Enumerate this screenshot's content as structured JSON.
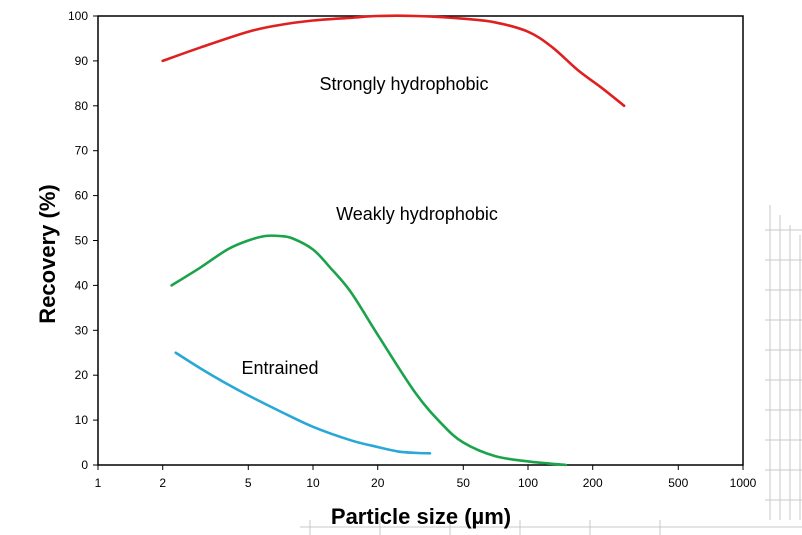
{
  "chart_data": {
    "type": "line",
    "title": "",
    "xlabel": "Particle size (µm)",
    "ylabel": "Recovery (%)",
    "xscale": "log",
    "xlim": [
      1,
      1000
    ],
    "ylim": [
      0,
      100
    ],
    "grid": false,
    "x_ticks": [
      1,
      2,
      5,
      10,
      20,
      50,
      100,
      200,
      500,
      1000
    ],
    "x_tick_labels": [
      "1",
      "2",
      "5",
      "10",
      "20",
      "50",
      "100",
      "200",
      "500",
      "1000"
    ],
    "y_ticks": [
      0,
      10,
      20,
      30,
      40,
      50,
      60,
      70,
      80,
      90,
      100
    ],
    "y_tick_labels": [
      "0",
      "10",
      "20",
      "30",
      "40",
      "50",
      "60",
      "70",
      "80",
      "90",
      "100"
    ],
    "series": [
      {
        "name": "Strongly hydrophobic",
        "color": "#e02020",
        "x": [
          2,
          3,
          5,
          7,
          10,
          15,
          20,
          30,
          50,
          70,
          100,
          130,
          170,
          220,
          280
        ],
        "y": [
          90,
          93,
          96.5,
          98,
          99,
          99.6,
          100,
          100,
          99.4,
          98.6,
          96.5,
          93,
          88,
          84,
          80
        ]
      },
      {
        "name": "Weakly hydrophobic",
        "color": "#1aa34a",
        "x": [
          2.2,
          3,
          4,
          5,
          6,
          7,
          8,
          10,
          12,
          15,
          20,
          30,
          40,
          50,
          70,
          100,
          150
        ],
        "y": [
          40,
          44,
          48,
          50,
          51,
          51,
          50.5,
          48,
          44,
          38.5,
          29,
          16,
          9,
          5,
          2,
          0.8,
          0
        ]
      },
      {
        "name": "Entrained",
        "color": "#29a8d8",
        "x": [
          2.3,
          3,
          4,
          5,
          7,
          10,
          15,
          20,
          25,
          30,
          35
        ],
        "y": [
          25,
          21.5,
          18,
          15.5,
          12,
          8.5,
          5.5,
          4,
          3,
          2.7,
          2.6
        ]
      }
    ],
    "annotations": [
      {
        "text": "Strongly hydrophobic",
        "series": "Strongly hydrophobic"
      },
      {
        "text": "Weakly hydrophobic",
        "series": "Weakly hydrophobic"
      },
      {
        "text": "Entrained",
        "series": "Entrained"
      }
    ]
  }
}
